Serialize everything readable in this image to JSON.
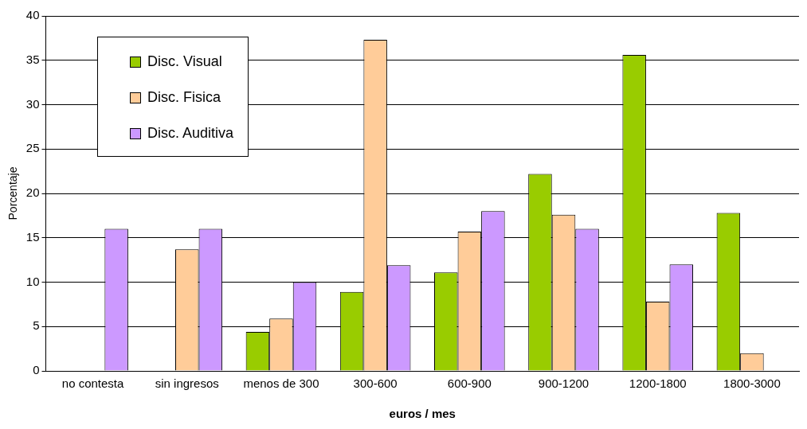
{
  "chart_data": {
    "type": "bar",
    "xlabel": "euros / mes",
    "ylabel": "Porcentaje",
    "categories": [
      "no contesta",
      "sin ingresos",
      "menos de 300",
      "300-600",
      "600-900",
      "900-1200",
      "1200-1800",
      "1800-3000"
    ],
    "series": [
      {
        "name": "Disc. Visual",
        "color": "#99cc00",
        "values": [
          null,
          null,
          4.4,
          8.9,
          11.1,
          22.2,
          35.6,
          17.8
        ]
      },
      {
        "name": "Disc. Fisica",
        "color": "#ffcc99",
        "values": [
          null,
          13.7,
          5.9,
          37.3,
          15.7,
          17.6,
          7.8,
          2.0
        ]
      },
      {
        "name": "Disc. Auditiva",
        "color": "#cc99ff",
        "values": [
          16,
          16,
          10,
          11.9,
          18,
          16,
          12,
          null
        ]
      }
    ],
    "ylim": [
      0,
      40
    ],
    "yticks": [
      0,
      5,
      10,
      15,
      20,
      25,
      30,
      35,
      40
    ],
    "grid": "y",
    "legend": "top left"
  }
}
